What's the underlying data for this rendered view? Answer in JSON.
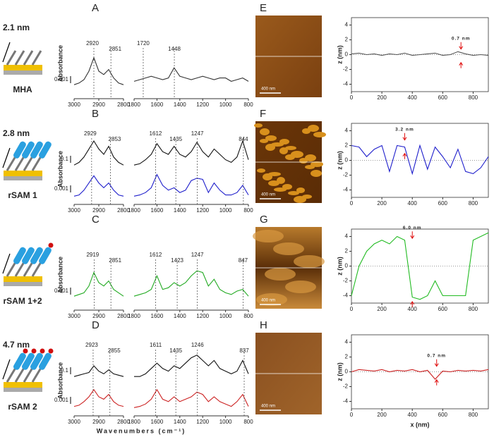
{
  "figure": {
    "ir_axis": {
      "y_label": "Absorbance",
      "x_label": "Wavenumbers (cm⁻¹)",
      "left_ticks": [
        3000,
        2900,
        2800
      ],
      "right_ticks": [
        1800,
        1600,
        1400,
        1200,
        1000,
        800
      ],
      "left_x": [
        3000,
        2980,
        2960,
        2940,
        2920,
        2900,
        2880,
        2860,
        2840,
        2820,
        2800
      ],
      "right_x": [
        1800,
        1750,
        1700,
        1650,
        1600,
        1550,
        1500,
        1450,
        1400,
        1350,
        1300,
        1250,
        1200,
        1150,
        1100,
        1050,
        1000,
        950,
        900,
        850,
        800
      ]
    },
    "profile_axis": {
      "y_label": "z (nm)",
      "x_label": "x (nm)",
      "xlim": [
        0,
        900
      ],
      "ylim": [
        -5,
        5
      ],
      "xticks": [
        0,
        200,
        400,
        600,
        800
      ],
      "yticks": [
        -4,
        -2,
        0,
        2,
        4
      ],
      "x": [
        0,
        50,
        100,
        150,
        200,
        250,
        300,
        350,
        400,
        450,
        500,
        550,
        600,
        650,
        700,
        750,
        800,
        850,
        900
      ]
    },
    "rows": [
      {
        "letter": "A",
        "thickness": "2.1 nm",
        "name": "MHA",
        "image_letter": "E",
        "scale_bar": "400 nm",
        "absorbance_scales": [
          0.001
        ],
        "peaks_left": [
          2920,
          2851
        ],
        "peaks_right": [
          1720,
          1448
        ],
        "spectra": [
          {
            "color": "#333333",
            "left": [
              0.1,
              0.15,
              0.25,
              0.5,
              0.9,
              0.5,
              0.4,
              0.55,
              0.3,
              0.15,
              0.1
            ],
            "right": [
              0.2,
              0.25,
              0.3,
              0.35,
              0.3,
              0.25,
              0.3,
              0.6,
              0.35,
              0.3,
              0.25,
              0.3,
              0.35,
              0.3,
              0.25,
              0.3,
              0.3,
              0.2,
              0.25,
              0.3,
              0.2
            ]
          }
        ],
        "profile": {
          "color": "#555555",
          "annotation": "0.7 nm",
          "z": [
            0.1,
            0.2,
            0,
            0.1,
            -0.1,
            0.1,
            0,
            0.2,
            -0.1,
            0,
            0.1,
            0.2,
            -0.1,
            0,
            0.4,
            0.1,
            -0.1,
            0,
            -0.1
          ]
        }
      },
      {
        "letter": "B",
        "thickness": "2.8 nm",
        "name": "rSAM 1",
        "image_letter": "F",
        "scale_bar": "400 nm",
        "absorbance_scales": [
          0.1,
          0.001
        ],
        "peaks_left": [
          2929,
          2853
        ],
        "peaks_right": [
          1612,
          1435,
          1247,
          844
        ],
        "spectra": [
          {
            "color": "#111111",
            "left": [
              0.1,
              0.2,
              0.4,
              0.7,
              1,
              0.7,
              0.5,
              0.8,
              0.4,
              0.2,
              0.1
            ],
            "right": [
              0.1,
              0.15,
              0.3,
              0.5,
              0.9,
              0.6,
              0.5,
              0.8,
              0.5,
              0.4,
              0.6,
              0.95,
              0.6,
              0.4,
              0.7,
              0.5,
              0.3,
              0.2,
              0.4,
              1,
              0.3
            ]
          },
          {
            "color": "#1f1fcc",
            "left": [
              0.05,
              0.1,
              0.3,
              0.6,
              0.9,
              0.6,
              0.4,
              0.6,
              0.3,
              0.1,
              0.05
            ],
            "right": [
              0.05,
              0.1,
              0.2,
              0.4,
              0.95,
              0.5,
              0.3,
              0.4,
              0.2,
              0.3,
              0.7,
              0.8,
              0.75,
              0.2,
              0.6,
              0.3,
              0.1,
              0.1,
              0.2,
              0.5,
              0.1
            ]
          }
        ],
        "profile": {
          "color": "#1f1fcc",
          "annotation": "3.2 nm",
          "z": [
            2,
            1.8,
            0.5,
            1.5,
            2,
            -1.5,
            2,
            1.8,
            -1.8,
            2,
            -1.2,
            1.8,
            0.5,
            -1,
            1.5,
            -1.5,
            -1.8,
            -1,
            0.5
          ]
        }
      },
      {
        "letter": "C",
        "name": "rSAM 1+2",
        "image_letter": "G",
        "scale_bar": "400 nm",
        "absorbance_scales": [
          0.001
        ],
        "peaks_left": [
          2919,
          2851
        ],
        "peaks_right": [
          1612,
          1423,
          1247,
          847
        ],
        "spectra": [
          {
            "color": "#22aa22",
            "left": [
              0.1,
              0.15,
              0.2,
              0.4,
              0.8,
              0.5,
              0.4,
              0.55,
              0.3,
              0.2,
              0.1
            ],
            "right": [
              0.1,
              0.15,
              0.2,
              0.3,
              0.7,
              0.3,
              0.35,
              0.5,
              0.4,
              0.5,
              0.7,
              0.85,
              0.8,
              0.4,
              0.6,
              0.3,
              0.2,
              0.15,
              0.25,
              0.3,
              0.1
            ]
          }
        ],
        "profile": {
          "color": "#22bb22",
          "annotation": "6.0 nm",
          "z": [
            -4,
            0,
            2,
            3,
            3.5,
            3,
            4,
            3.5,
            -4.2,
            -4.5,
            -4,
            -2,
            -4,
            -4,
            -4,
            -4,
            3.5,
            4,
            4.5
          ]
        }
      },
      {
        "letter": "D",
        "thickness": "4.7 nm",
        "name": "rSAM 2",
        "image_letter": "H",
        "scale_bar": "400 nm",
        "absorbance_scales": [
          0.1,
          0.001
        ],
        "peaks_left": [
          2923,
          2855
        ],
        "peaks_right": [
          1611,
          1435,
          1246,
          837
        ],
        "spectra": [
          {
            "color": "#111111",
            "left": [
              0.1,
              0.15,
              0.2,
              0.25,
              0.5,
              0.3,
              0.2,
              0.35,
              0.2,
              0.15,
              0.1
            ],
            "right": [
              0.1,
              0.1,
              0.2,
              0.4,
              0.6,
              0.4,
              0.3,
              0.5,
              0.4,
              0.6,
              0.8,
              0.9,
              0.7,
              0.5,
              0.7,
              0.4,
              0.3,
              0.2,
              0.3,
              0.7,
              0.2
            ]
          },
          {
            "color": "#cc2222",
            "left": [
              0.1,
              0.15,
              0.3,
              0.5,
              0.8,
              0.5,
              0.4,
              0.6,
              0.3,
              0.15,
              0.1
            ],
            "right": [
              0.05,
              0.1,
              0.2,
              0.4,
              0.8,
              0.4,
              0.3,
              0.5,
              0.3,
              0.4,
              0.5,
              0.7,
              0.6,
              0.3,
              0.5,
              0.3,
              0.2,
              0.1,
              0.3,
              0.6,
              0.1
            ]
          }
        ],
        "profile": {
          "color": "#cc2222",
          "annotation": "0.7 nm",
          "z": [
            0,
            0.3,
            0.2,
            0.1,
            0.3,
            0,
            0.2,
            0.1,
            0.3,
            0,
            0.2,
            -1,
            0.1,
            0,
            0.2,
            0.1,
            0.2,
            0.1,
            0.3
          ]
        }
      }
    ]
  }
}
